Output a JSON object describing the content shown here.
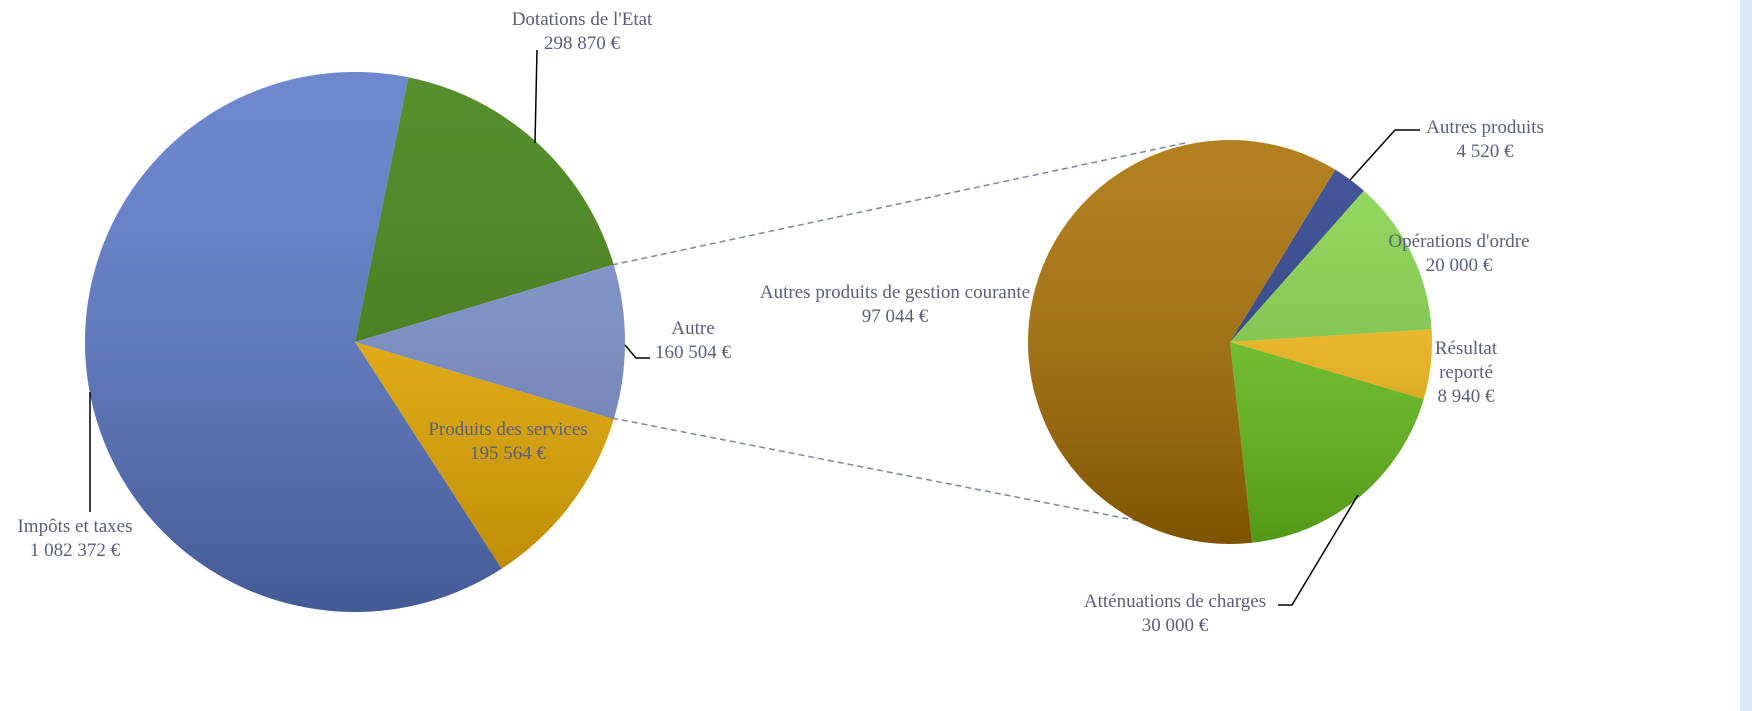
{
  "chart_data": [
    {
      "type": "pie",
      "categories": [
        "Dotations de l'Etat",
        "Autre",
        "Produits des services",
        "Impôts et taxes"
      ],
      "values": [
        298870,
        160504,
        195564,
        1082372
      ],
      "value_labels": [
        "298 870 €",
        "160 504 €",
        "195 564 €",
        "1 082 372 €"
      ],
      "colors": [
        "#3f800f",
        "#7c93d0",
        "#f4b400",
        "#5a78c8"
      ]
    },
    {
      "type": "pie",
      "categories": [
        "Autres produits",
        "Opérations d'ordre",
        "Résultat reporté",
        "Atténuations de charges",
        "Autres produits de gestion courante"
      ],
      "values": [
        4520,
        20000,
        8940,
        30000,
        97044
      ],
      "value_labels": [
        "4 520 €",
        "20 000 €",
        "8 940 €",
        "30 000 €",
        "97 044 €"
      ],
      "colors": [
        "#2a3f8c",
        "#86d64a",
        "#ffc21a",
        "#6ecb1e",
        "#a86f00"
      ]
    }
  ]
}
